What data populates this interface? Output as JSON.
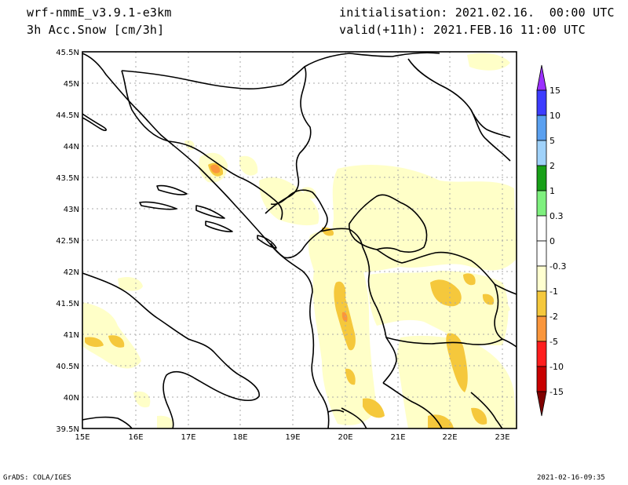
{
  "header": {
    "model": "wrf-nmmE_v3.9.1-e3km",
    "field": "3h Acc.Snow [cm/3h]",
    "init": "initialisation: 2021.02.16.  00:00 UTC",
    "valid": "valid(+11h): 2021.FEB.16 11:00 UTC"
  },
  "footer": {
    "left": "GrADS: COLA/IGES",
    "right": "2021-02-16-09:35"
  },
  "map": {
    "lat_labels": [
      "45.5N",
      "45N",
      "44.5N",
      "44N",
      "43.5N",
      "43N",
      "42.5N",
      "42N",
      "41.5N",
      "41N",
      "40.5N",
      "40N",
      "39.5N"
    ],
    "lon_labels": [
      "15E",
      "16E",
      "17E",
      "18E",
      "19E",
      "20E",
      "21E",
      "22E",
      "23E"
    ]
  },
  "colorbar": {
    "labels": [
      "15",
      "10",
      "5",
      "2",
      "1",
      "0.3",
      "0",
      "-0.3",
      "-1",
      "-2",
      "-5",
      "-10",
      "-15"
    ],
    "colors": [
      "#9b30ff",
      "#3c3cff",
      "#5aa0f0",
      "#a0d2fa",
      "#18a018",
      "#7ef07e",
      "#ffffff",
      "#ffffd0",
      "#f5c83c",
      "#fa963c",
      "#ff1e1e",
      "#c80000",
      "#800000"
    ]
  },
  "colors": {
    "snow_light": "#ffffc8",
    "snow_moderate": "#f5c83c",
    "snow_heavy": "#fa963c"
  }
}
